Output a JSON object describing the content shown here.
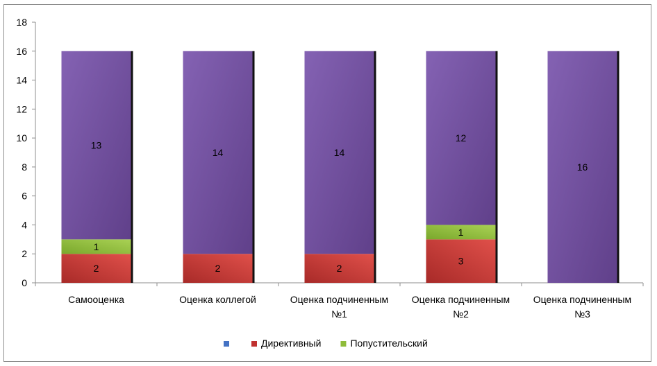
{
  "chart_data": {
    "type": "bar",
    "stacked": true,
    "categories": [
      "Самооценка",
      "Оценка коллегой",
      "Оценка подчиненным №1",
      "Оценка подчиненным №2",
      "Оценка подчиненным №3"
    ],
    "category_lines": [
      [
        "Самооценка"
      ],
      [
        "Оценка коллегой"
      ],
      [
        "Оценка подчиненным",
        "№1"
      ],
      [
        "Оценка подчиненным",
        "№2"
      ],
      [
        "Оценка подчиненным",
        "№3"
      ]
    ],
    "series": [
      {
        "name": "",
        "color": "#4472c4",
        "values": [
          13,
          14,
          14,
          12,
          16
        ],
        "labels": [
          "13",
          "14",
          "14",
          "12",
          "16"
        ],
        "fill_color": "#7450a0"
      },
      {
        "name": "Директивный",
        "color": "#c0312f",
        "values": [
          2,
          2,
          2,
          3,
          0
        ],
        "labels": [
          "2",
          "2",
          "2",
          "3",
          ""
        ]
      },
      {
        "name": "Попустительский",
        "color": "#8fbc3a",
        "values": [
          1,
          0,
          0,
          1,
          0
        ],
        "labels": [
          "1",
          "",
          "",
          "1",
          ""
        ]
      }
    ],
    "stack_order": [
      "Директивный",
      "Попустительский",
      ""
    ],
    "ylim": [
      0,
      18
    ],
    "yticks": [
      "0",
      "2",
      "4",
      "6",
      "8",
      "10",
      "12",
      "14",
      "16",
      "18"
    ],
    "grid": false,
    "legend": "bottom"
  }
}
